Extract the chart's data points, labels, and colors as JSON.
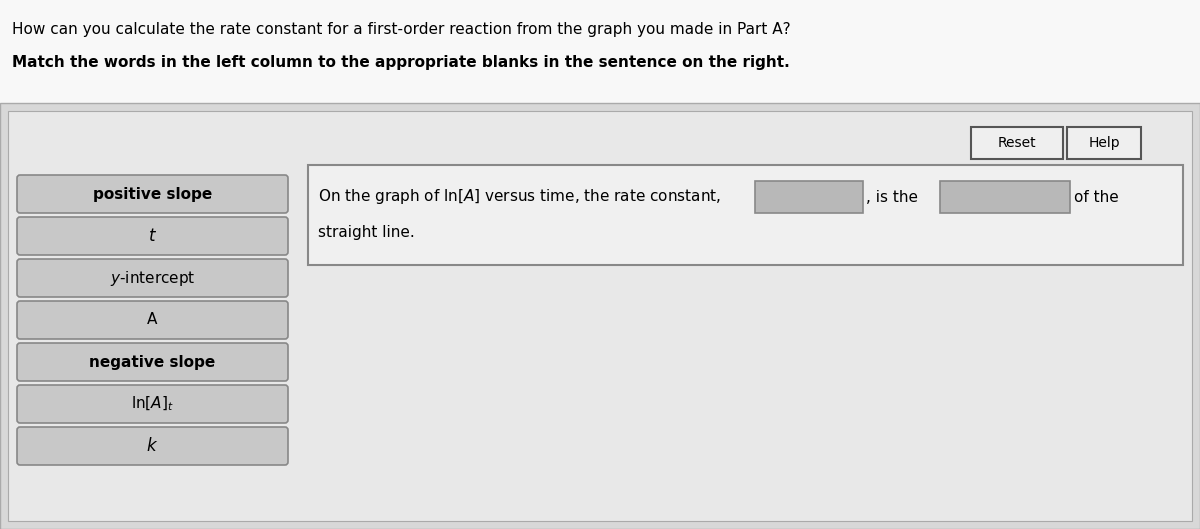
{
  "page_bg": "#ffffff",
  "panel_bg": "#e0e0e0",
  "panel_border": "#aaaaaa",
  "title_text": "How can you calculate the rate constant for a first-order reaction from the graph you made in Part A?",
  "subtitle_text": "Match the words in the left column to the appropriate blanks in the sentence on the right.",
  "left_buttons": [
    "positive slope",
    "t",
    "y-intercept",
    "A",
    "negative slope",
    "ln[A]t",
    "k"
  ],
  "left_buttons_italic": [
    false,
    true,
    false,
    false,
    false,
    false,
    true
  ],
  "left_buttons_bold": [
    true,
    false,
    false,
    false,
    true,
    false,
    false
  ],
  "button_bg": "#c8c8c8",
  "button_border": "#888888",
  "blank_bg": "#b8b8b8",
  "blank_border": "#888888",
  "reset_label": "Reset",
  "help_label": "Help",
  "sentence_pre": "On the graph of ln[A] versus time, the rate constant,",
  "sentence_mid": ", is the",
  "sentence_post": "of the",
  "sentence_line2": "straight line."
}
